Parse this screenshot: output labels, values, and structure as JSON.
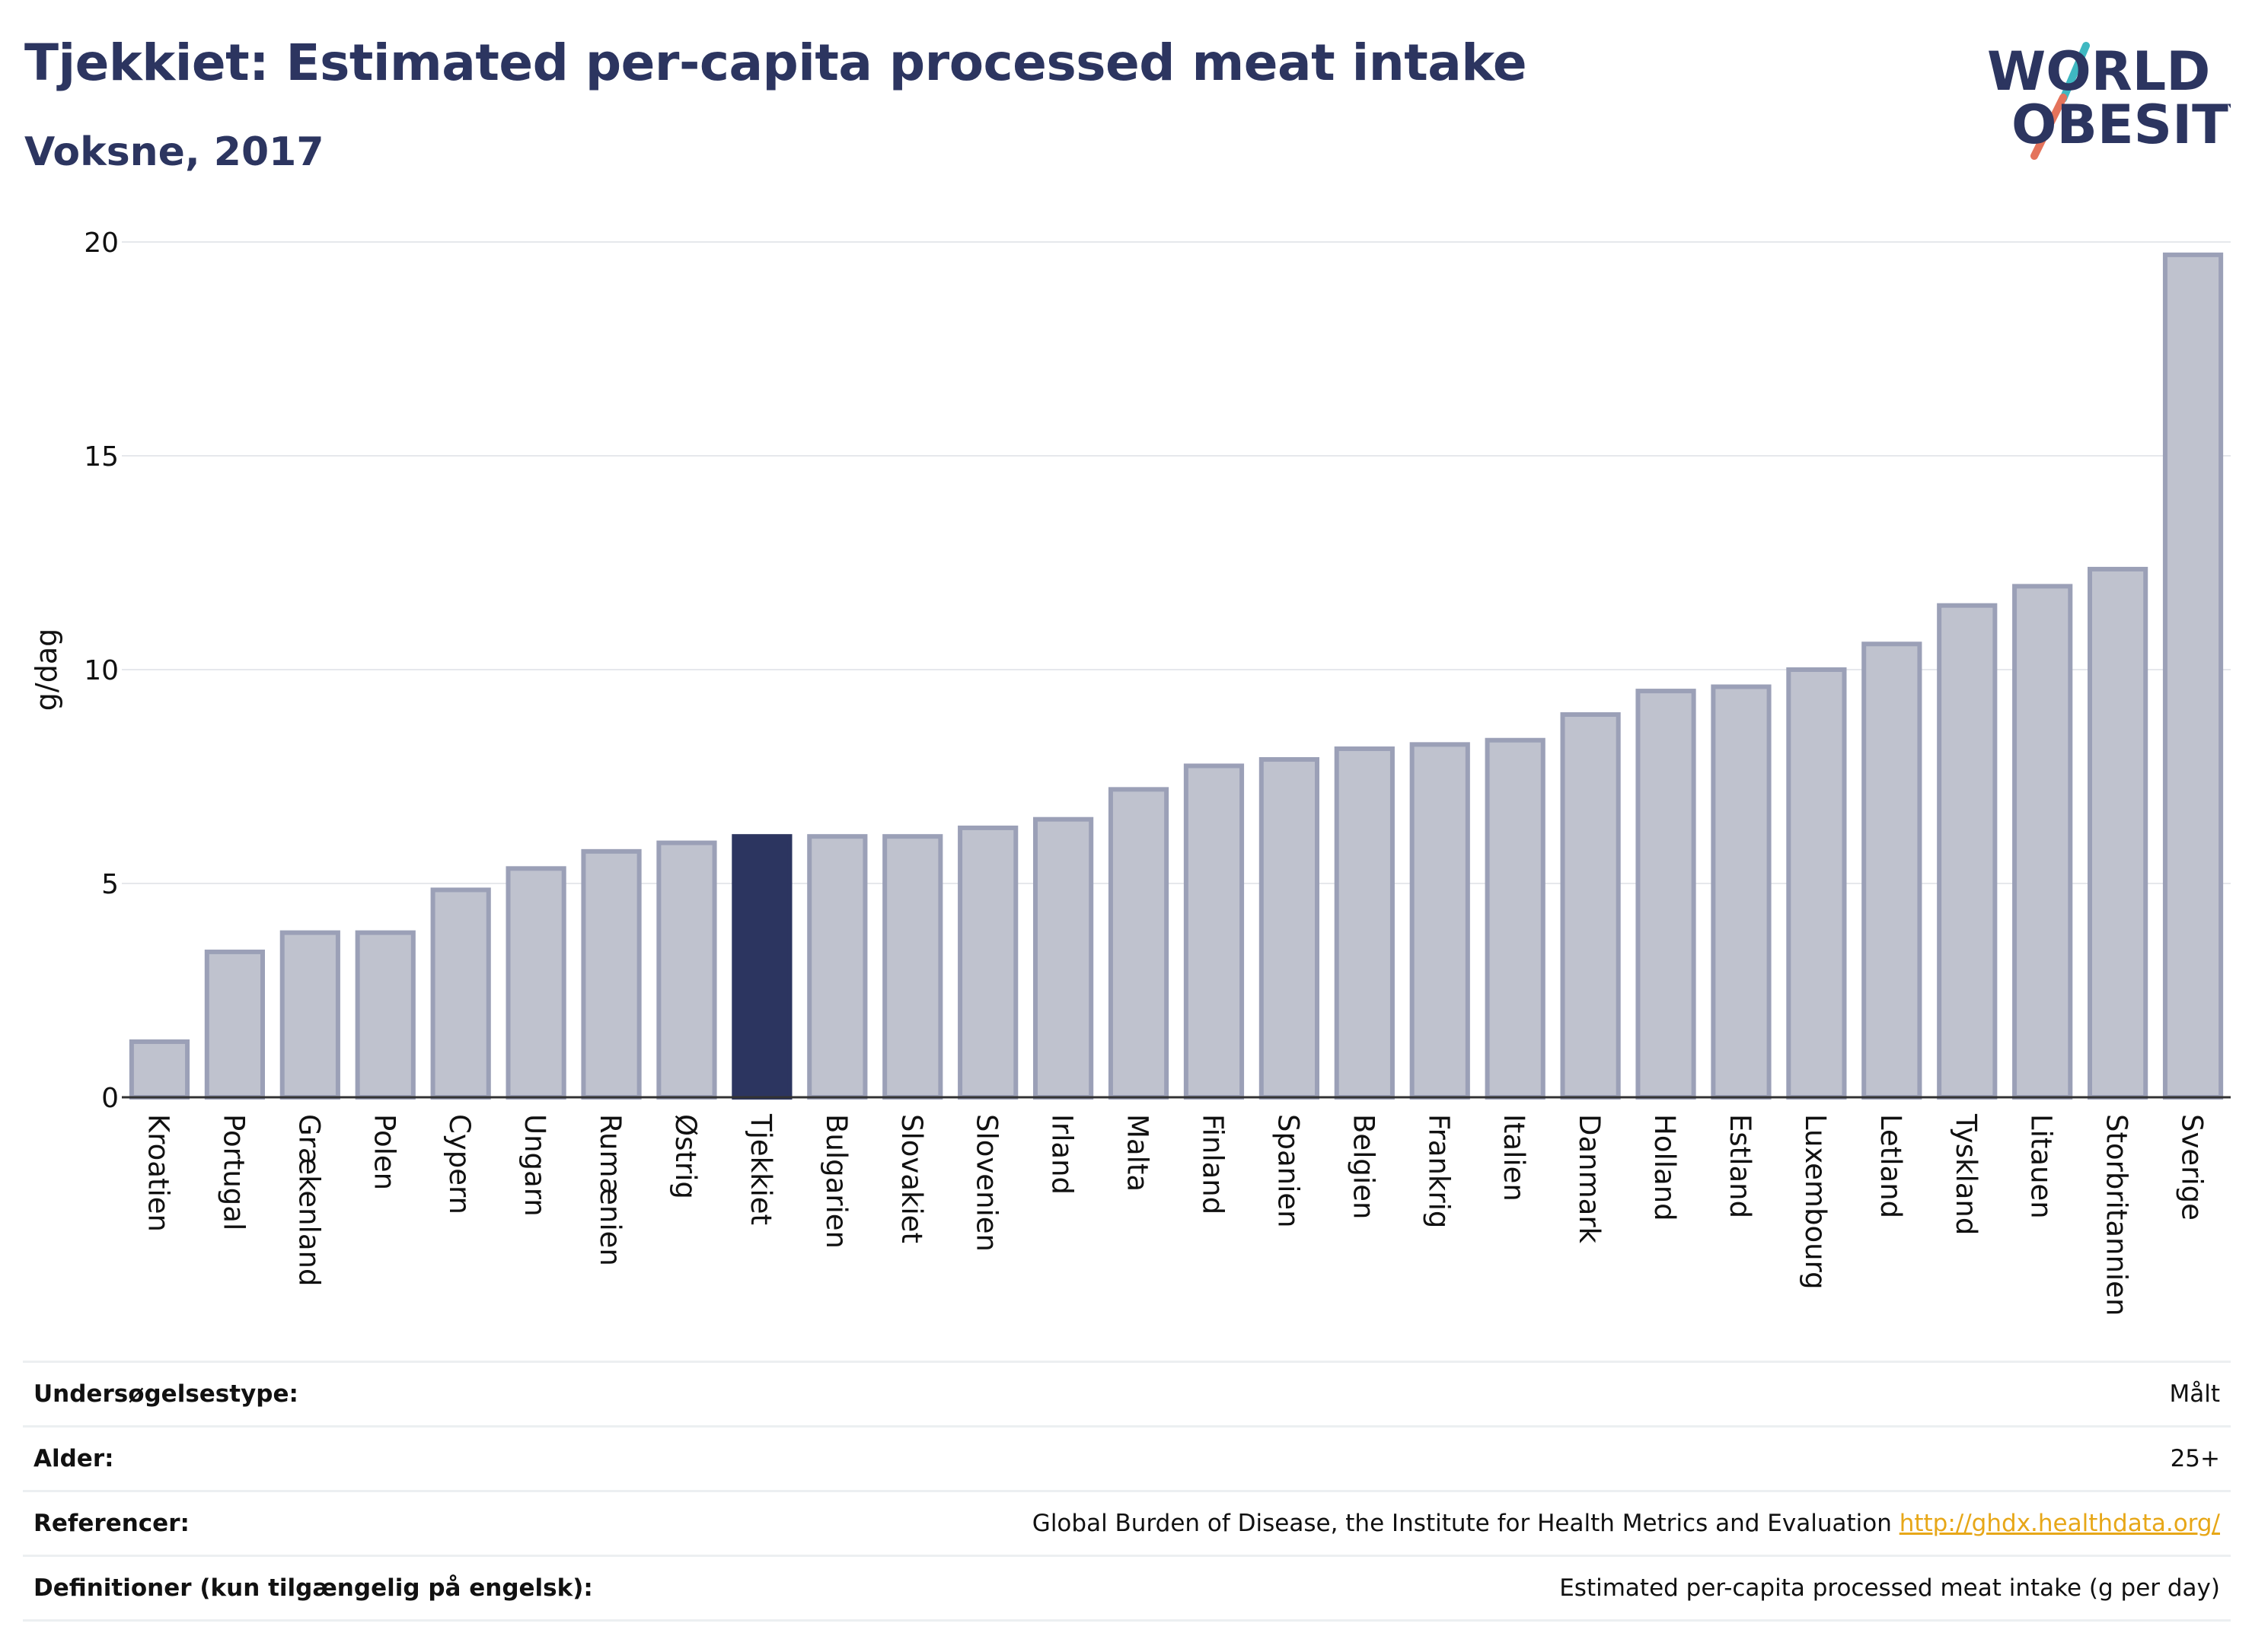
{
  "header": {
    "title": "Tjekkiet: Estimated per-capita processed meat intake",
    "subtitle": "Voksne, 2017"
  },
  "logo": {
    "line1": "WORLD",
    "line2": "OBESITY",
    "colors": {
      "text": "#2c3560",
      "slash_top": "#3fb8c1",
      "slash_bottom": "#e4735b"
    }
  },
  "chart_data": {
    "type": "bar",
    "ylabel": "g/dag",
    "xlabel": "",
    "ylim": [
      0,
      20
    ],
    "yticks": [
      0,
      5,
      10,
      15,
      20
    ],
    "grid": true,
    "highlight": "Tjekkiet",
    "colors": {
      "bar": "#bfc2ce",
      "bar_border": "#9ba0b7",
      "highlight": "#2c3560"
    },
    "categories": [
      "Kroatien",
      "Portugal",
      "Grækenland",
      "Polen",
      "Cypern",
      "Ungarn",
      "Rumænien",
      "Østrig",
      "Tjekkiet",
      "Bulgarien",
      "Slovakiet",
      "Slovenien",
      "Irland",
      "Malta",
      "Finland",
      "Spanien",
      "Belgien",
      "Frankrig",
      "Italien",
      "Danmark",
      "Holland",
      "Estland",
      "Luxembourg",
      "Letland",
      "Tyskland",
      "Litauen",
      "Storbritannien",
      "Sverige"
    ],
    "values": [
      1.3,
      3.4,
      3.85,
      3.85,
      4.85,
      5.35,
      5.75,
      5.95,
      6.1,
      6.1,
      6.1,
      6.3,
      6.5,
      7.2,
      7.75,
      7.9,
      8.15,
      8.25,
      8.35,
      8.95,
      9.5,
      9.6,
      10.0,
      10.6,
      11.5,
      11.95,
      12.35,
      19.7
    ]
  },
  "meta": [
    {
      "label": "Undersøgelsestype:",
      "value": "Målt"
    },
    {
      "label": "Alder:",
      "value": "25+"
    },
    {
      "label": "Referencer:",
      "value": "Global Burden of Disease, the Institute for Health Metrics and Evaluation",
      "link": "http://ghdx.healthdata.org/"
    },
    {
      "label": "Definitioner (kun tilgængelig på engelsk):",
      "value": "Estimated per-capita processed meat intake (g per day)"
    }
  ]
}
